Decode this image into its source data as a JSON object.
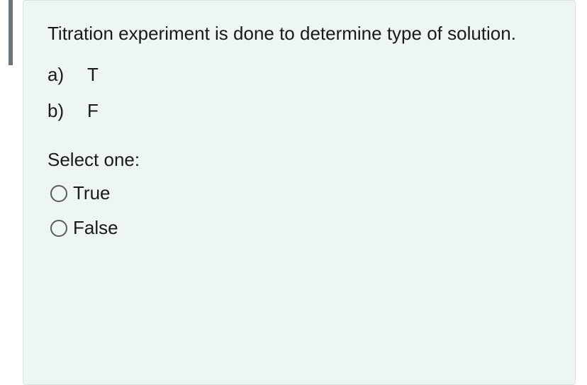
{
  "colors": {
    "card_background": "#eef6f5",
    "card_border": "#d6e4e2",
    "left_accent": "#6c757d",
    "text": "#1a1a1a",
    "radio_border": "#5a5a5a"
  },
  "question": {
    "text": "Titration experiment is done to determine type of solution.",
    "options": [
      {
        "letter": "a)",
        "value": "T"
      },
      {
        "letter": "b)",
        "value": "F"
      }
    ]
  },
  "answer": {
    "prompt": "Select one:",
    "choices": [
      {
        "label": "True",
        "selected": false
      },
      {
        "label": "False",
        "selected": false
      }
    ]
  }
}
